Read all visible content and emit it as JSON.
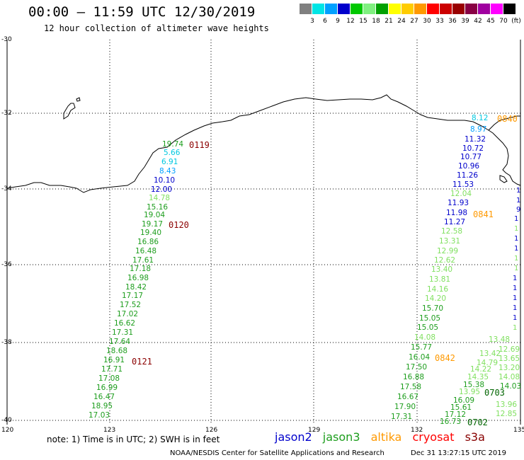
{
  "header": {
    "title": "00:00 — 11:59 UTC 12/30/2019",
    "subtitle": "12 hour collection of altimeter wave heights"
  },
  "scale": {
    "colors": [
      "#808080",
      "#00e5e5",
      "#00a0ff",
      "#0000cc",
      "#00c800",
      "#80f080",
      "#00a000",
      "#ffff00",
      "#ffcc00",
      "#ff9900",
      "#ff0000",
      "#cc0000",
      "#990000",
      "#880044",
      "#a000a0",
      "#ff00ff",
      "#000000"
    ],
    "labels": [
      "3",
      "6",
      "9",
      "12",
      "15",
      "18",
      "21",
      "24",
      "27",
      "30",
      "33",
      "36",
      "39",
      "42",
      "45",
      "70",
      "(ft)"
    ]
  },
  "axes": {
    "lat_labels": [
      "-30",
      "-32",
      "-34",
      "-36",
      "-38",
      "-40"
    ],
    "lon_labels": [
      "120",
      "123",
      "126",
      "129",
      "132",
      "135"
    ]
  },
  "track_121": {
    "color": "#1e9e1e",
    "values": [
      "19.74",
      "14.78",
      "15.16",
      "19.04",
      "19.17",
      "19.40",
      "16.86",
      "16.48",
      "17.61",
      "17.18",
      "16.98",
      "18.42",
      "17.17",
      "17.52",
      "17.02",
      "16.62",
      "17.31",
      "17.64",
      "18.68",
      "16.91",
      "17.71",
      "17.08",
      "16.99",
      "16.47",
      "18.95",
      "17.03"
    ]
  },
  "track_121_cyan": [
    "5.66",
    "6.91",
    "8.43"
  ],
  "track_121_blue": [
    "10.10",
    "12.00"
  ],
  "times": {
    "t0119": "0119",
    "t0120": "0120",
    "t0121": "0121",
    "t0840": "0840",
    "t0841": "0841",
    "t0842": "0842",
    "t0703": "0703",
    "t0702": "0702"
  },
  "track_east_blue": [
    "11.32",
    "10.72",
    "10.77",
    "10.96",
    "11.26",
    "11.53",
    "11.93",
    "11.98",
    "11.27"
  ],
  "track_east_cyan": [
    "8.12",
    "8.97"
  ],
  "track_east_light": [
    "12.04",
    "12.58",
    "13.31",
    "12.99",
    "12.62",
    "13.40",
    "13.81",
    "14.16",
    "14.20",
    "15.70",
    "15.05",
    "15.05",
    "14.08"
  ],
  "track_east_green": [
    "15.77",
    "16.04",
    "17.50",
    "16.88",
    "17.58",
    "16.67",
    "17.90",
    "17.31"
  ],
  "track_se_green": [
    "15.38",
    "16.09",
    "15.61",
    "17.12",
    "16.73"
  ],
  "track_se_light": [
    "13.48",
    "13.42",
    "14.79",
    "14.22",
    "14.35",
    "13.95",
    "13.96",
    "12.85",
    "12.69",
    "13.65",
    "13.20",
    "14.08",
    "14.03"
  ],
  "note": "note: 1) Time is in UTC; 2) SWH is in feet",
  "legend": {
    "jason2": "jason2",
    "jason3": "jason3",
    "altika": "altika",
    "cryosat": "cryosat",
    "s3a": "s3a"
  },
  "footer": {
    "source": "NOAA/NESDIS Center for Satellite Applications and Research",
    "time": "Dec 31 13:27:15 UTC 2019"
  },
  "colors": {
    "jason2": "#0000cc",
    "jason3": "#1e9e1e",
    "altika": "#ff9900",
    "cryosat": "#ff0000",
    "s3a": "#880000"
  }
}
